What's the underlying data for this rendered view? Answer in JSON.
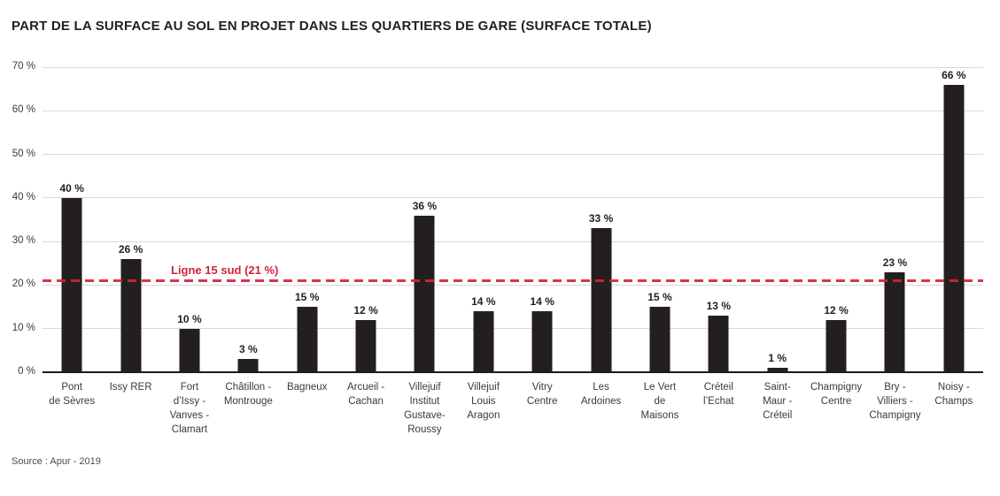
{
  "title": "PART DE LA SURFACE AU SOL EN PROJET DANS LES QUARTIERS DE GARE (SURFACE TOTALE)",
  "source": "Source : Apur - 2019",
  "colors": {
    "bar": "#231f20",
    "grid": "#d9d9d9",
    "axis": "#1a1a1a",
    "accent_red": "#d2233c",
    "tick_text": "#3a3a3a",
    "title_text": "#231f20"
  },
  "chart_data": {
    "type": "bar",
    "title": "PART DE LA SURFACE AU SOL EN PROJET DANS LES QUARTIERS DE GARE (SURFACE TOTALE)",
    "categories": [
      "Pont\nde Sèvres",
      "Issy RER",
      "Fort\nd’Issy -\nVanves -\nClamart",
      "Châtillon -\nMontrouge",
      "Bagneux",
      "Arcueil -\nCachan",
      "Villejuif\nInstitut\nGustave-\nRoussy",
      "Villejuif\nLouis\nAragon",
      "Vitry\nCentre",
      "Les\nArdoines",
      "Le Vert\nde\nMaisons",
      "Créteil\nl’Echat",
      "Saint-\nMaur -\nCréteil",
      "Champigny\nCentre",
      "Bry -\nVilliers -\nChampigny",
      "Noisy -\nChamps"
    ],
    "values": [
      40,
      26,
      10,
      3,
      15,
      12,
      36,
      14,
      14,
      33,
      15,
      13,
      1,
      12,
      23,
      66
    ],
    "value_suffix": " %",
    "xlabel": "",
    "ylabel": "",
    "ylim": [
      0,
      70
    ],
    "yticks": [
      0,
      10,
      20,
      30,
      40,
      50,
      60,
      70
    ],
    "ytick_suffix": " %",
    "grid": true,
    "legend": "none",
    "annotation": {
      "label": "Ligne 15 sud (21 %)",
      "value": 21,
      "style": "dashed",
      "color": "#d2233c"
    },
    "source": "Source : Apur - 2019"
  }
}
